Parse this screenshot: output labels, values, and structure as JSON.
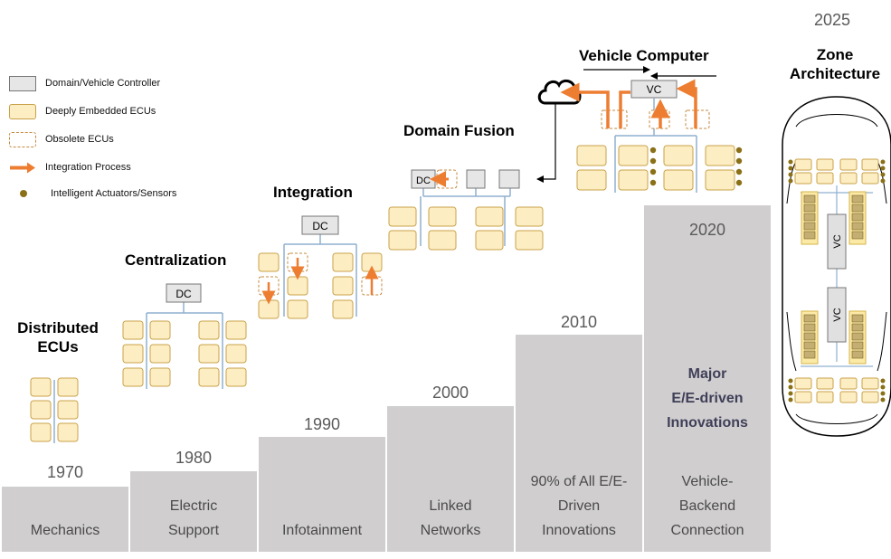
{
  "legend": {
    "items": [
      {
        "label": "Domain/Vehicle Controller",
        "icon": "controller-box-icon"
      },
      {
        "label": "Deeply Embedded ECUs",
        "icon": "ecu-box-icon"
      },
      {
        "label": "Obsolete ECUs",
        "icon": "dashed-box-icon"
      },
      {
        "label": "Integration Process",
        "icon": "orange-arrow-icon"
      },
      {
        "label": "Intelligent Actuators/Sensors",
        "icon": "dot-icon"
      }
    ]
  },
  "stages": {
    "distributed": {
      "title_line1": "Distributed",
      "title_line2": "ECUs"
    },
    "centralization": {
      "title": "Centralization",
      "dc_label": "DC"
    },
    "integration": {
      "title": "Integration",
      "dc_label": "DC"
    },
    "domain_fusion": {
      "title": "Domain Fusion",
      "dc_label": "DC"
    },
    "vehicle_computer": {
      "title": "Vehicle Computer",
      "vc_label": "VC"
    },
    "zone": {
      "year": "2025",
      "title_line1": "Zone",
      "title_line2": "Architecture",
      "vc_label": "VC"
    }
  },
  "steps": [
    {
      "year": "1970",
      "label_lines": [
        "Mechanics"
      ]
    },
    {
      "year": "1980",
      "label_lines": [
        "Electric",
        "Support"
      ]
    },
    {
      "year": "1990",
      "label_lines": [
        "Infotainment"
      ]
    },
    {
      "year": "2000",
      "label_lines": [
        "Linked",
        "Networks"
      ]
    },
    {
      "year": "2010",
      "label_lines": [
        "90% of All E/E-",
        "Driven",
        "Innovations"
      ]
    },
    {
      "year": "2020",
      "label_lines": [
        "Vehicle-",
        "Backend",
        "Connection"
      ]
    }
  ],
  "major_innovations": {
    "lines": [
      "Major",
      "E/E-driven",
      "Innovations"
    ]
  },
  "colors": {
    "step_gray": "#d0cecf",
    "ecu_fill": "#fdedc3",
    "ecu_border": "#c9a24a",
    "arrow_orange": "#ed7d31",
    "controller_fill": "#e6e6e6",
    "dot_color": "#8a7016",
    "bus_line": "#8fb0cf"
  }
}
